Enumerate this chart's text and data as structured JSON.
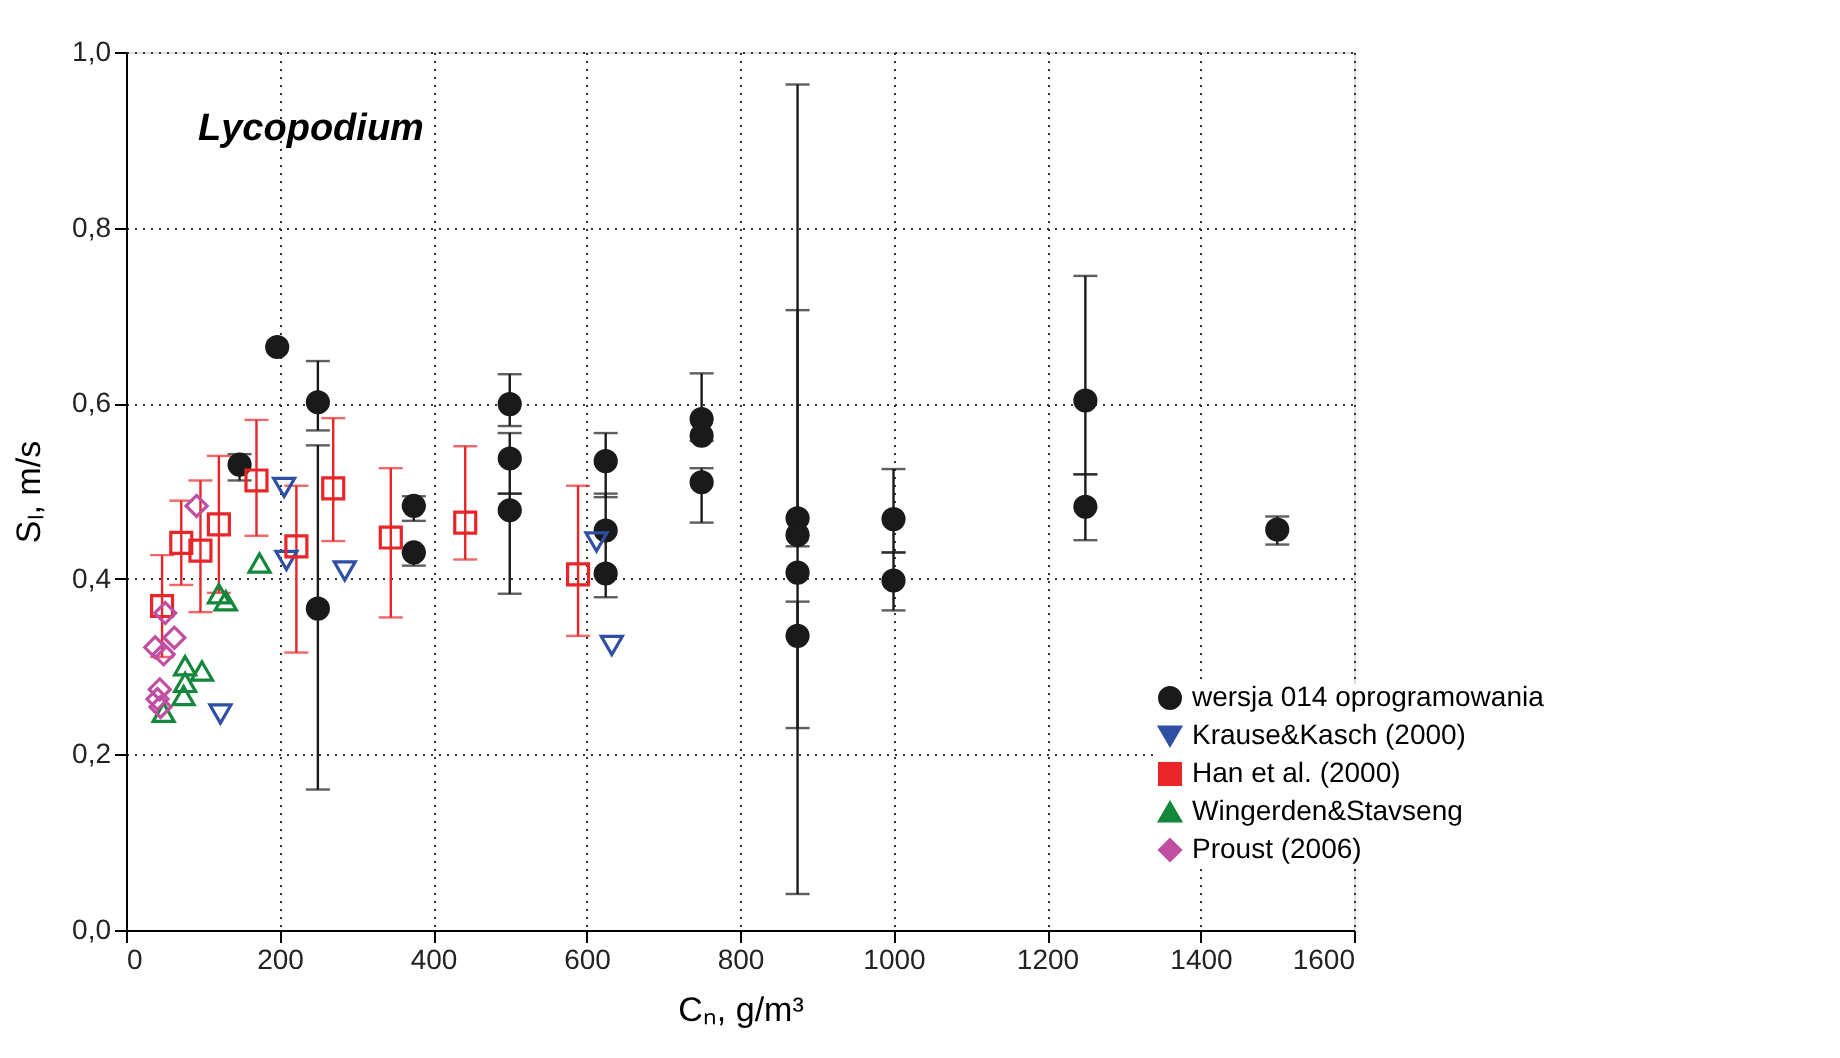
{
  "chart_data": {
    "type": "scatter",
    "xlabel": "Cₙ, g/m³",
    "ylabel": "Sₗ, m/s",
    "annotations": [
      "Lycopodium"
    ],
    "xlim": [
      0,
      1600
    ],
    "xticks": [
      0,
      200,
      400,
      600,
      800,
      1000,
      1200,
      1400,
      1600
    ],
    "ylim": [
      0,
      1
    ],
    "yticks": [
      {
        "value": 0,
        "label": "0,0"
      },
      {
        "value": 0.2,
        "label": "0,2"
      },
      {
        "value": 0.4,
        "label": "0,4"
      },
      {
        "value": 0.6,
        "label": "0,6"
      },
      {
        "value": 0.8,
        "label": "0,8"
      },
      {
        "value": 1,
        "label": "1,0"
      }
    ],
    "grid": true,
    "legend": "bottom right",
    "series": [
      {
        "name": "wersja 014 oprogramowania",
        "color": "#1a1a1a",
        "marker": "circle",
        "x": [
          148,
          197,
          250,
          250,
          375,
          375,
          500,
          500,
          500,
          625,
          625,
          625,
          750,
          750,
          750,
          875,
          875,
          875,
          875,
          1000,
          1000,
          1250,
          1250,
          1500
        ],
        "values": [
          0.53,
          0.664,
          0.601,
          0.366,
          0.483,
          0.43,
          0.599,
          0.537,
          0.478,
          0.534,
          0.455,
          0.406,
          0.582,
          0.563,
          0.51,
          0.469,
          0.45,
          0.407,
          0.335,
          0.468,
          0.398,
          0.603,
          0.482,
          0.456
        ],
        "errors": [
          [
            0.512,
            0.542
          ],
          null,
          [
            0.569,
            0.648
          ],
          [
            0.16,
            0.552
          ],
          [
            0.466,
            0.494
          ],
          [
            0.415,
            0.43
          ],
          [
            0.574,
            0.633
          ],
          [
            0.497,
            0.566
          ],
          [
            0.383,
            0.497
          ],
          [
            0.493,
            0.566
          ],
          null,
          [
            0.379,
            0.497
          ],
          [
            0.557,
            0.634
          ],
          null,
          [
            0.464,
            0.526
          ],
          [
            0.437,
            0.706
          ],
          null,
          [
            0.041,
            0.963
          ],
          [
            0.23,
            0.374
          ],
          [
            0.43,
            0.525
          ],
          [
            0.364,
            0.43
          ],
          [
            0.519,
            0.745
          ],
          [
            0.444,
            0.519
          ],
          [
            0.439,
            0.471
          ]
        ]
      },
      {
        "name": "Krause&Kasch (2000)",
        "color": "#2e4fa3",
        "marker": "triangle-down",
        "x": [
          206,
          209,
          285,
          123,
          613,
          633
        ],
        "values": [
          0.504,
          0.421,
          0.409,
          0.246,
          0.442,
          0.324
        ]
      },
      {
        "name": "Han et al. (2000)",
        "color": "#e8262a",
        "marker": "square",
        "x": [
          47,
          72,
          97,
          121,
          170,
          222,
          270,
          345,
          442,
          589
        ],
        "values": [
          0.369,
          0.441,
          0.432,
          0.462,
          0.512,
          0.437,
          0.503,
          0.447,
          0.464,
          0.405
        ],
        "errors": [
          [
            0.311,
            0.427
          ],
          [
            0.393,
            0.489
          ],
          [
            0.362,
            0.512
          ],
          [
            0.384,
            0.54
          ],
          [
            0.449,
            0.581
          ],
          [
            0.316,
            0.506
          ],
          [
            0.443,
            0.583
          ],
          [
            0.356,
            0.526
          ],
          [
            0.422,
            0.551
          ],
          [
            0.335,
            0.506
          ]
        ]
      },
      {
        "name": "Wingerden&Stavseng",
        "color": "#13873a",
        "marker": "triangle-up",
        "x": [
          174,
          121,
          130,
          77,
          99,
          77,
          75,
          49
        ],
        "values": [
          0.418,
          0.383,
          0.375,
          0.301,
          0.295,
          0.282,
          0.267,
          0.248
        ]
      },
      {
        "name": "Proust (2006)",
        "color": "#c04ea3",
        "marker": "diamond",
        "x": [
          92,
          51,
          63,
          38,
          49,
          44,
          41,
          45
        ],
        "values": [
          0.483,
          0.361,
          0.333,
          0.322,
          0.314,
          0.274,
          0.263,
          0.254
        ]
      }
    ]
  }
}
